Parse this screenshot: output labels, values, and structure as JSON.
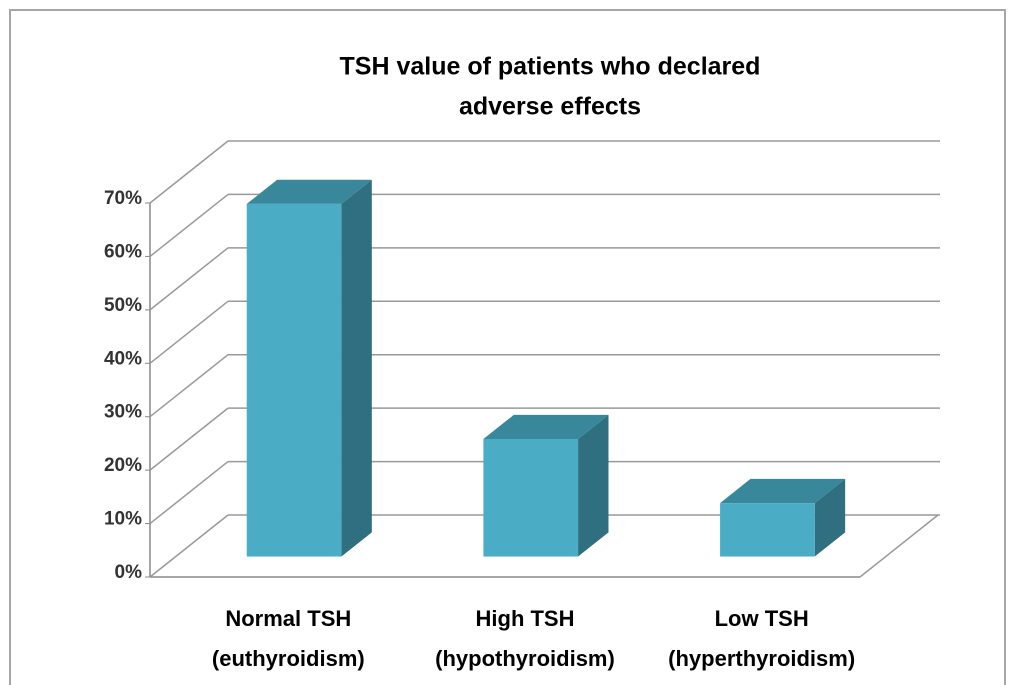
{
  "chart_data": {
    "type": "bar3d",
    "title": [
      "TSH value of patients who declared",
      "adverse effects"
    ],
    "categories": [
      [
        "Normal TSH",
        "(euthyroidism)"
      ],
      [
        "High TSH",
        "(hypothyroidism)"
      ],
      [
        "Low TSH",
        "(hyperthyroidism)"
      ]
    ],
    "values": [
      66,
      22,
      10
    ],
    "color": "#4bacc6",
    "ylim": [
      0,
      70
    ],
    "yticks": [
      {
        "value": 0,
        "label": "0%"
      },
      {
        "value": 10,
        "label": "10%"
      },
      {
        "value": 20,
        "label": "20%"
      },
      {
        "value": 30,
        "label": "30%"
      },
      {
        "value": 40,
        "label": "40%"
      },
      {
        "value": 50,
        "label": "50%"
      },
      {
        "value": 60,
        "label": "60%"
      },
      {
        "value": 70,
        "label": "70%"
      }
    ],
    "grid": true
  }
}
